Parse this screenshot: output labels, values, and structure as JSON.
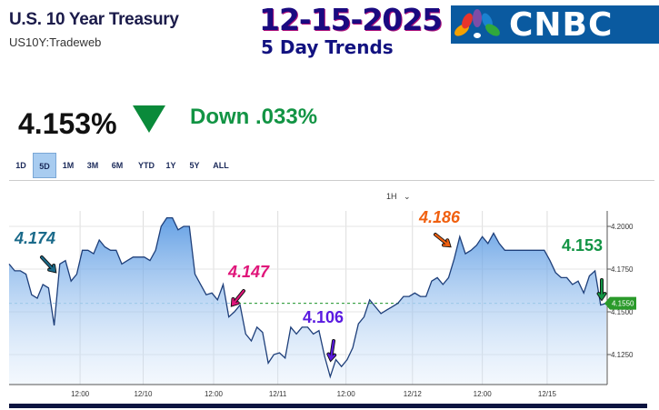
{
  "header": {
    "title": "U.S. 10 Year Treasury",
    "symbol": "US10Y:Tradeweb",
    "date": "12-15-2025",
    "subtitle": "5 Day Trends",
    "logo": "CNBC"
  },
  "quote": {
    "price": "4.153%",
    "direction": "down",
    "direction_icon": "triangle-down-icon",
    "change": "Down .033%",
    "colors": {
      "down": "#0a8a3a"
    }
  },
  "ranges": {
    "items": [
      "1D",
      "5D",
      "1M",
      "3M",
      "6M",
      "YTD",
      "1Y",
      "5Y",
      "ALL"
    ],
    "active": "5D"
  },
  "interval": {
    "label": "1H"
  },
  "chart_data": {
    "type": "area",
    "xlabel": "",
    "ylabel": "",
    "x_tick_labels": [
      "12:00",
      "12/10",
      "12:00",
      "12/11",
      "12:00",
      "12/12",
      "12:00",
      "12/15"
    ],
    "y_tick_labels": [
      "4.2000",
      "4.1750",
      "4.1500",
      "4.1250"
    ],
    "y_ticks": [
      4.2,
      4.175,
      4.15,
      4.125
    ],
    "ylim": [
      4.103,
      4.214
    ],
    "grid": true,
    "line_color": "#1e3f7a",
    "fill_color": "#4a90e0",
    "reference_line": {
      "value": 4.155,
      "label": "4.1550",
      "color": "#2a9a2a"
    },
    "series": [
      {
        "values": [
          4.178,
          4.174,
          4.174,
          4.172,
          4.16,
          4.158,
          4.166,
          4.164,
          4.142,
          4.178,
          4.18,
          4.168,
          4.172,
          4.186,
          4.186,
          4.184,
          4.192,
          4.188,
          4.186,
          4.186,
          4.178,
          4.18,
          4.182,
          4.182,
          4.182,
          4.18,
          4.186,
          4.2,
          4.205,
          4.205,
          4.198,
          4.2,
          4.2,
          4.172,
          4.166,
          4.16,
          4.161,
          4.157,
          4.166,
          4.147,
          4.15,
          4.154,
          4.137,
          4.133,
          4.141,
          4.138,
          4.12,
          4.125,
          4.126,
          4.123,
          4.141,
          4.137,
          4.141,
          4.141,
          4.137,
          4.139,
          4.124,
          4.112,
          4.122,
          4.118,
          4.122,
          4.129,
          4.143,
          4.147,
          4.157,
          4.153,
          4.149,
          4.151,
          4.153,
          4.155,
          4.159,
          4.159,
          4.161,
          4.159,
          4.159,
          4.168,
          4.17,
          4.166,
          4.17,
          4.181,
          4.194,
          4.184,
          4.186,
          4.189,
          4.194,
          4.19,
          4.196,
          4.19,
          4.186,
          4.186,
          4.186,
          4.186,
          4.186,
          4.186,
          4.186,
          4.186,
          4.18,
          4.173,
          4.17,
          4.17,
          4.166,
          4.168,
          4.161,
          4.171,
          4.174,
          4.154,
          4.155
        ]
      }
    ],
    "annotations": [
      {
        "text": "4.174",
        "color": "#1a6a8a"
      },
      {
        "text": "4.147",
        "color": "#e0157a"
      },
      {
        "text": "4.106",
        "color": "#5a1ae0"
      },
      {
        "text": "4.186",
        "color": "#f06010"
      },
      {
        "text": "4.153",
        "color": "#129444"
      }
    ]
  }
}
